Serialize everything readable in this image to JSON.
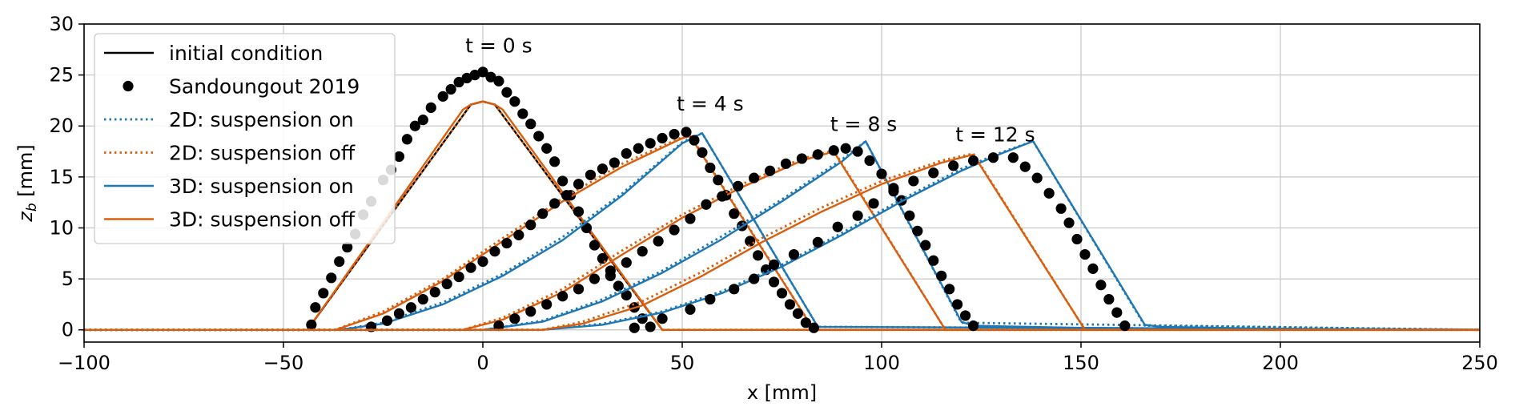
{
  "chart_data": {
    "type": "line",
    "xlabel": "x [mm]",
    "ylabel_main": "z",
    "ylabel_sub": "b",
    "ylabel_unit": " [mm]",
    "xlim": [
      -100,
      250
    ],
    "ylim": [
      -1.2,
      30
    ],
    "xticks": [
      -100,
      -50,
      0,
      50,
      100,
      150,
      200,
      250
    ],
    "xtick_labels": [
      "−100",
      "−50",
      "0",
      "50",
      "100",
      "150",
      "200",
      "250"
    ],
    "yticks": [
      0,
      5,
      10,
      15,
      20,
      25,
      30
    ],
    "ytick_labels": [
      "0",
      "5",
      "10",
      "15",
      "20",
      "25",
      "30"
    ],
    "grid": true,
    "legend_position": "top-left",
    "colors": {
      "blue": "#1f77b4",
      "orange": "#d95f0e",
      "black": "#000000"
    },
    "legend": [
      {
        "label": "initial condition",
        "style": "solid",
        "color": "#000000",
        "marker": false
      },
      {
        "label": "Sandoungout 2019",
        "style": "none",
        "color": "#000000",
        "marker": true
      },
      {
        "label": "2D: suspension on",
        "style": "dotted",
        "color": "#1f77b4",
        "marker": false
      },
      {
        "label": "2D: suspension off",
        "style": "dotted",
        "color": "#d95f0e",
        "marker": false
      },
      {
        "label": "3D: suspension on",
        "style": "solid",
        "color": "#1f77b4",
        "marker": false
      },
      {
        "label": "3D: suspension off",
        "style": "solid",
        "color": "#d95f0e",
        "marker": false
      }
    ],
    "annotations": [
      {
        "text": "t = 0 s",
        "x": 4,
        "y": 27.2
      },
      {
        "text": "t = 4 s",
        "x": 57,
        "y": 21.5
      },
      {
        "text": "t = 8 s",
        "x": 95.5,
        "y": 19.5
      },
      {
        "text": "t = 12 s",
        "x": 128.5,
        "y": 18.5
      }
    ],
    "series": [
      {
        "name": "initial condition",
        "time": "0 s",
        "color": "#000000",
        "style": "solid",
        "x": [
          -100,
          -44,
          -3,
          0,
          3,
          45,
          250
        ],
        "y": [
          0,
          0,
          22.1,
          22.4,
          22.1,
          0,
          0
        ]
      },
      {
        "name": "3D: suspension off",
        "time": "0 s",
        "color": "#d95f0e",
        "style": "solid",
        "x": [
          -100,
          -44,
          -5,
          -3,
          0,
          3,
          5,
          45,
          250
        ],
        "y": [
          0,
          0,
          21.6,
          22.1,
          22.4,
          22.1,
          21.6,
          0,
          0
        ]
      },
      {
        "name": "2D: suspension off",
        "time": "0 s",
        "color": "#d95f0e",
        "style": "dotted",
        "x": [
          -100,
          -44,
          -3,
          0,
          3,
          45,
          250
        ],
        "y": [
          0,
          0,
          22.1,
          22.4,
          22.1,
          0,
          0
        ]
      },
      {
        "name": "Sandoungout 2019",
        "time": "0 s",
        "color": "#000000",
        "style": "markers",
        "x": [
          -43,
          -42,
          -40,
          -38,
          -36,
          -34,
          -32,
          -30,
          -28,
          -25,
          -23,
          -21,
          -19,
          -17,
          -15,
          -13,
          -10,
          -8,
          -6,
          -4,
          -2,
          0,
          2,
          4,
          6,
          8,
          10,
          12,
          14,
          16,
          18,
          20,
          22,
          24,
          26,
          28,
          30,
          32,
          34,
          36,
          38,
          40,
          42
        ],
        "y": [
          0.5,
          2.2,
          3.6,
          5.1,
          6.7,
          8.1,
          9.4,
          11.3,
          12.6,
          14.7,
          15.7,
          17.0,
          18.7,
          20.0,
          20.6,
          21.8,
          22.9,
          23.6,
          24.3,
          24.7,
          25.0,
          25.3,
          24.8,
          24.4,
          23.3,
          22.4,
          21.2,
          20.2,
          19.0,
          17.8,
          16.5,
          14.6,
          13.2,
          11.6,
          10.0,
          8.3,
          7.0,
          5.3,
          4.3,
          3.4,
          2.2,
          1.1,
          0.3
        ]
      },
      {
        "name": "3D: suspension on",
        "time": "4 s",
        "color": "#1f77b4",
        "style": "solid",
        "x": [
          -100,
          -36,
          -25,
          -10,
          5,
          20,
          35,
          50,
          55,
          84,
          250
        ],
        "y": [
          0,
          0,
          0.6,
          2.5,
          5.3,
          8.8,
          13.2,
          18.3,
          19.3,
          0.3,
          0
        ]
      },
      {
        "name": "2D: suspension on",
        "time": "4 s",
        "color": "#1f77b4",
        "style": "dotted",
        "x": [
          -100,
          -36,
          -25,
          -10,
          5,
          20,
          35,
          50,
          55,
          84,
          250
        ],
        "y": [
          0,
          0,
          0.7,
          2.7,
          5.5,
          9.1,
          13.4,
          18.4,
          19.3,
          0.3,
          0
        ]
      },
      {
        "name": "3D: suspension off",
        "time": "4 s",
        "color": "#d95f0e",
        "style": "solid",
        "x": [
          -100,
          -37,
          -25,
          -10,
          5,
          20,
          35,
          50,
          52,
          83,
          250
        ],
        "y": [
          0,
          0,
          1.6,
          4.8,
          8.7,
          12.6,
          16.0,
          18.8,
          19.0,
          0,
          0
        ]
      },
      {
        "name": "2D: suspension off",
        "time": "4 s",
        "color": "#d95f0e",
        "style": "dotted",
        "x": [
          -100,
          -37,
          -25,
          -10,
          5,
          20,
          35,
          50,
          52,
          83,
          250
        ],
        "y": [
          0,
          0,
          1.8,
          5.0,
          9.0,
          12.9,
          16.3,
          18.9,
          19.1,
          0,
          0
        ]
      },
      {
        "name": "Sandoungout 2019",
        "time": "4 s",
        "color": "#000000",
        "style": "markers",
        "x": [
          -28,
          -24,
          -21,
          -18,
          -15,
          -12,
          -9,
          -6,
          -3,
          0,
          3,
          6,
          9,
          12,
          15,
          18,
          21,
          24,
          27,
          30,
          33,
          36,
          39,
          42,
          45,
          48,
          51,
          53,
          55,
          57,
          59,
          61,
          63,
          65,
          67,
          69,
          71,
          73,
          75,
          77,
          79,
          81,
          83
        ],
        "y": [
          0.3,
          0.9,
          1.6,
          2.2,
          3.0,
          3.7,
          4.5,
          5.2,
          6.1,
          6.7,
          7.7,
          8.5,
          9.3,
          10.3,
          11.4,
          12.4,
          13.2,
          14.3,
          15.2,
          15.8,
          16.4,
          17.3,
          17.8,
          18.3,
          18.8,
          19.2,
          19.4,
          18.6,
          17.4,
          15.9,
          14.7,
          13.2,
          11.4,
          10.2,
          8.7,
          7.3,
          5.9,
          4.7,
          3.6,
          2.5,
          1.6,
          0.7,
          0.2
        ]
      },
      {
        "name": "3D: suspension on",
        "time": "8 s",
        "color": "#1f77b4",
        "style": "solid",
        "x": [
          -100,
          0,
          15,
          30,
          45,
          60,
          75,
          90,
          96,
          120,
          123,
          150,
          250
        ],
        "y": [
          0,
          0,
          0.8,
          2.8,
          5.6,
          8.9,
          12.6,
          16.5,
          18.5,
          0.8,
          0.4,
          0.2,
          0
        ]
      },
      {
        "name": "2D: suspension on",
        "time": "8 s",
        "color": "#1f77b4",
        "style": "dotted",
        "x": [
          -100,
          0,
          15,
          30,
          45,
          60,
          75,
          90,
          96,
          120,
          250
        ],
        "y": [
          0,
          0,
          0.9,
          3.0,
          5.8,
          9.2,
          12.8,
          16.7,
          18.5,
          0.7,
          0
        ]
      },
      {
        "name": "3D: suspension off",
        "time": "8 s",
        "color": "#d95f0e",
        "style": "solid",
        "x": [
          -100,
          -5,
          5,
          20,
          35,
          50,
          65,
          80,
          88,
          116,
          250
        ],
        "y": [
          0,
          0,
          1.0,
          3.7,
          7.4,
          11.0,
          14.0,
          16.6,
          17.5,
          0,
          0
        ]
      },
      {
        "name": "2D: suspension off",
        "time": "8 s",
        "color": "#d95f0e",
        "style": "dotted",
        "x": [
          -100,
          -5,
          5,
          20,
          35,
          50,
          65,
          80,
          88,
          116,
          250
        ],
        "y": [
          0,
          0,
          1.2,
          4.0,
          7.8,
          11.3,
          14.3,
          16.8,
          17.6,
          0,
          0
        ]
      },
      {
        "name": "Sandoungout 2019",
        "time": "8 s",
        "color": "#000000",
        "style": "markers",
        "x": [
          4,
          8,
          12,
          16,
          20,
          24,
          28,
          32,
          36,
          40,
          44,
          48,
          52,
          56,
          60,
          64,
          68,
          72,
          76,
          80,
          84,
          88,
          91,
          94,
          97,
          100,
          103,
          105,
          107,
          109,
          111,
          113,
          115,
          117,
          119,
          121,
          123
        ],
        "y": [
          0.4,
          1.1,
          1.8,
          2.5,
          3.3,
          4.0,
          5.0,
          5.8,
          6.6,
          7.7,
          8.7,
          9.8,
          10.9,
          12.3,
          13.1,
          14.1,
          14.9,
          15.6,
          16.3,
          16.8,
          17.2,
          17.6,
          17.8,
          17.5,
          16.6,
          15.3,
          13.9,
          12.7,
          11.2,
          9.7,
          8.3,
          6.8,
          5.3,
          4.0,
          2.5,
          1.4,
          0.4
        ]
      },
      {
        "name": "3D: suspension on",
        "time": "12 s",
        "color": "#1f77b4",
        "style": "solid",
        "x": [
          -100,
          15,
          30,
          45,
          60,
          75,
          90,
          105,
          120,
          130,
          138,
          166,
          170,
          200,
          250
        ],
        "y": [
          0,
          0,
          0.5,
          1.7,
          3.6,
          6.2,
          9.3,
          12.6,
          15.6,
          17.3,
          18.5,
          0.5,
          0.3,
          0.1,
          0
        ]
      },
      {
        "name": "2D: suspension on",
        "time": "12 s",
        "color": "#1f77b4",
        "style": "dotted",
        "x": [
          -100,
          15,
          30,
          45,
          60,
          75,
          90,
          105,
          120,
          130,
          138,
          166,
          250
        ],
        "y": [
          0,
          0,
          0.6,
          1.8,
          3.8,
          6.4,
          9.5,
          12.8,
          15.8,
          17.4,
          18.5,
          0.4,
          0
        ]
      },
      {
        "name": "3D: suspension off",
        "time": "12 s",
        "color": "#d95f0e",
        "style": "solid",
        "x": [
          -100,
          15,
          25,
          40,
          55,
          70,
          85,
          100,
          115,
          123,
          151,
          250
        ],
        "y": [
          0,
          0,
          0.6,
          2.4,
          5.3,
          8.6,
          11.6,
          14.3,
          16.4,
          17.2,
          0,
          0
        ]
      },
      {
        "name": "2D: suspension off",
        "time": "12 s",
        "color": "#d95f0e",
        "style": "dotted",
        "x": [
          -100,
          15,
          25,
          40,
          55,
          70,
          85,
          100,
          115,
          123,
          151,
          250
        ],
        "y": [
          0,
          0,
          0.8,
          2.8,
          5.7,
          9.0,
          12.0,
          14.6,
          16.6,
          17.3,
          0,
          0
        ]
      },
      {
        "name": "Sandoungout 2019",
        "time": "12 s",
        "color": "#000000",
        "style": "markers",
        "x": [
          38,
          45,
          52,
          57,
          63,
          68,
          73,
          78,
          84,
          89,
          94,
          98,
          103,
          108,
          113,
          118,
          123,
          128,
          133,
          136,
          139,
          142,
          145,
          147,
          149,
          151,
          153,
          155,
          157,
          159,
          161
        ],
        "y": [
          0.2,
          1.1,
          2.0,
          3.0,
          4.0,
          5.0,
          6.4,
          7.4,
          8.6,
          10.1,
          11.2,
          12.4,
          13.6,
          14.6,
          15.4,
          16.1,
          16.6,
          16.9,
          16.9,
          16.0,
          14.9,
          13.4,
          11.9,
          10.5,
          8.9,
          7.4,
          6.0,
          4.4,
          3.0,
          1.7,
          0.4
        ]
      }
    ]
  }
}
